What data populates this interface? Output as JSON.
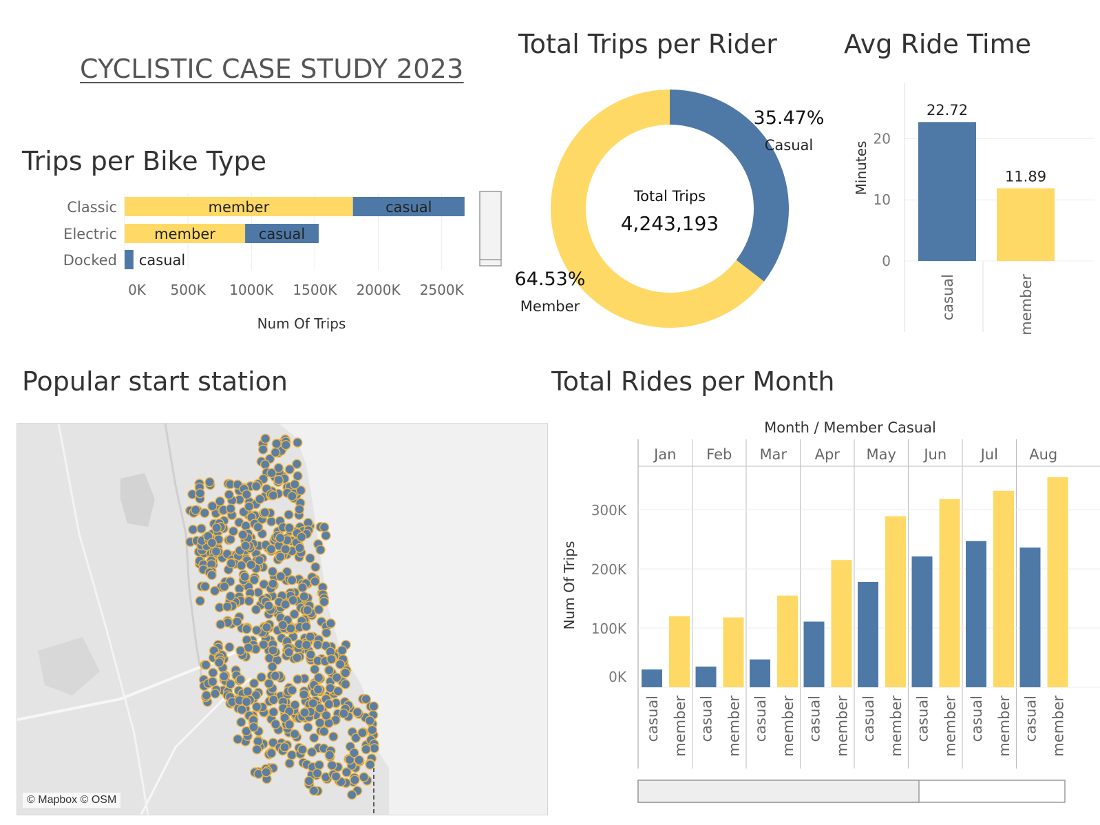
{
  "dashboard_title": "CYCLISTIC CASE STUDY 2023",
  "colors": {
    "member": "#ffd966",
    "casual": "#4e79a7",
    "grid": "#ececec",
    "axis": "#888888"
  },
  "chart_data": [
    {
      "id": "bike_type",
      "type": "bar",
      "orientation": "horizontal",
      "stacked": true,
      "title": "Trips per Bike Type",
      "xlabel": "Num Of Trips",
      "ylabel": "",
      "categories": [
        "Classic",
        "Electric",
        "Docked"
      ],
      "series": [
        {
          "name": "member",
          "values": [
            1800000,
            950000,
            0
          ]
        },
        {
          "name": "casual",
          "values": [
            880000,
            580000,
            70000
          ]
        }
      ],
      "xlim": [
        0,
        2800000
      ],
      "x_ticks": [
        0,
        500000,
        1000000,
        1500000,
        2000000,
        2500000
      ],
      "x_tick_labels": [
        "0K",
        "500K",
        "1000K",
        "1500K",
        "2000K",
        "2500K"
      ],
      "labels": [
        {
          "category": "Classic",
          "series": "member",
          "text": "member"
        },
        {
          "category": "Classic",
          "series": "casual",
          "text": "casual"
        },
        {
          "category": "Electric",
          "series": "member",
          "text": "member"
        },
        {
          "category": "Electric",
          "series": "casual",
          "text": "casual"
        },
        {
          "category": "Docked",
          "series": "casual",
          "text": "casual"
        }
      ]
    },
    {
      "id": "rider_share",
      "type": "pie",
      "donut": true,
      "title": "Total Trips per Rider",
      "center_label": "Total Trips",
      "center_value": "4,243,193",
      "slices": [
        {
          "name": "Casual",
          "value": 35.47,
          "label": "35.47%",
          "color": "#4e79a7"
        },
        {
          "name": "Member",
          "value": 64.53,
          "label": "64.53%",
          "color": "#ffd966"
        }
      ]
    },
    {
      "id": "ride_time",
      "type": "bar",
      "title": "Avg Ride Time",
      "ylabel": "Minutes",
      "xlabel": "",
      "categories": [
        "casual",
        "member"
      ],
      "values": [
        22.72,
        11.89
      ],
      "value_labels": [
        "22.72",
        "11.89"
      ],
      "colors": [
        "#4e79a7",
        "#ffd966"
      ],
      "ylim": [
        0,
        25
      ],
      "y_ticks": [
        0,
        10,
        20
      ],
      "y_tick_labels": [
        "0",
        "10",
        "20"
      ]
    },
    {
      "id": "monthly",
      "type": "bar",
      "title": "Total Rides per Month",
      "header": "Month / Member Casual",
      "ylabel": "Num Of Trips",
      "xlabel": "",
      "months": [
        "Jan",
        "Feb",
        "Mar",
        "Apr",
        "May",
        "Jun",
        "Jul",
        "Aug"
      ],
      "series": [
        {
          "name": "casual",
          "values": [
            30000,
            35000,
            47000,
            111000,
            178000,
            221000,
            247000,
            236000
          ]
        },
        {
          "name": "member",
          "values": [
            120000,
            118000,
            155000,
            215000,
            289000,
            318000,
            332000,
            355000
          ]
        }
      ],
      "ylim": [
        0,
        370000
      ],
      "y_ticks": [
        0,
        100000,
        200000,
        300000
      ],
      "y_tick_labels": [
        "0K",
        "100K",
        "200K",
        "300K"
      ]
    }
  ],
  "map": {
    "title": "Popular start station",
    "attribution": "© Mapbox © OSM",
    "marker_fill": "#5b7ea5",
    "marker_stroke": "#f3b53a"
  }
}
